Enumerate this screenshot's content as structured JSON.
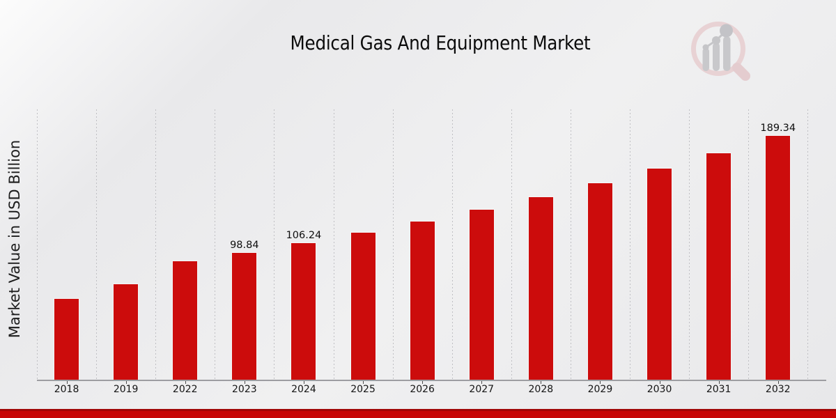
{
  "header": {
    "title": "Medical Gas And Equipment Market"
  },
  "watermark": {
    "name": "market-research-future-logo",
    "lens_color": "#e8d2d4",
    "bars_color": "#c8c8cb"
  },
  "footer": {
    "accent_edge_color": "#a00808",
    "accent_color": "#c70707"
  },
  "colors": {
    "bar": "#cc0c0c",
    "axis": "#9d9da1",
    "gridline": "#bfbfc3",
    "text": "#141414"
  },
  "chart_data": {
    "type": "bar",
    "title": "Medical Gas And Equipment Market",
    "xlabel": "",
    "ylabel": "Market Value in USD Billion",
    "categories": [
      "2018",
      "2019",
      "2022",
      "2023",
      "2024",
      "2025",
      "2026",
      "2027",
      "2028",
      "2029",
      "2030",
      "2031",
      "2032"
    ],
    "values": [
      62.8,
      74.2,
      92.0,
      98.84,
      106.24,
      114.2,
      122.8,
      132.0,
      141.9,
      152.5,
      163.9,
      176.2,
      189.34
    ],
    "data_labels": {
      "2023": "98.84",
      "2024": "106.24",
      "2032": "189.34"
    },
    "ylim": [
      0,
      210
    ],
    "grid": "vertical-dotted-category-boundaries",
    "legend": "none",
    "bar_color": "#cc0c0c"
  }
}
